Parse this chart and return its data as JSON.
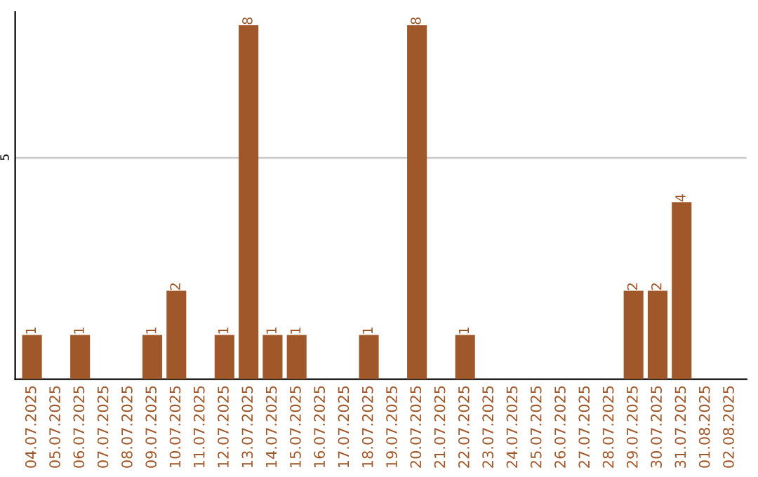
{
  "chart_data": {
    "type": "bar",
    "categories": [
      "04.07.2025",
      "05.07.2025",
      "06.07.2025",
      "07.07.2025",
      "08.07.2025",
      "09.07.2025",
      "10.07.2025",
      "11.07.2025",
      "12.07.2025",
      "13.07.2025",
      "14.07.2025",
      "15.07.2025",
      "16.07.2025",
      "17.07.2025",
      "18.07.2025",
      "19.07.2025",
      "20.07.2025",
      "21.07.2025",
      "22.07.2025",
      "23.07.2025",
      "24.07.2025",
      "25.07.2025",
      "26.07.2025",
      "27.07.2025",
      "28.07.2025",
      "29.07.2025",
      "30.07.2025",
      "31.07.2025",
      "01.08.2025",
      "02.08.2025"
    ],
    "values": [
      1,
      0,
      1,
      0,
      0,
      1,
      2,
      0,
      1,
      8,
      1,
      1,
      0,
      0,
      1,
      0,
      8,
      0,
      1,
      0,
      0,
      0,
      0,
      0,
      0,
      2,
      2,
      4,
      0,
      0
    ],
    "value_labels": [
      "1",
      null,
      "1",
      null,
      null,
      "1",
      "2",
      null,
      "1",
      "8",
      "1",
      "1",
      null,
      null,
      "1",
      null,
      "8",
      null,
      "1",
      null,
      null,
      null,
      null,
      null,
      null,
      "2",
      "2",
      "4",
      null,
      null
    ],
    "color": "#a0572a",
    "ylim": [
      0,
      8.3
    ],
    "yticks": [
      5
    ],
    "grid": "y",
    "legend": false
  }
}
